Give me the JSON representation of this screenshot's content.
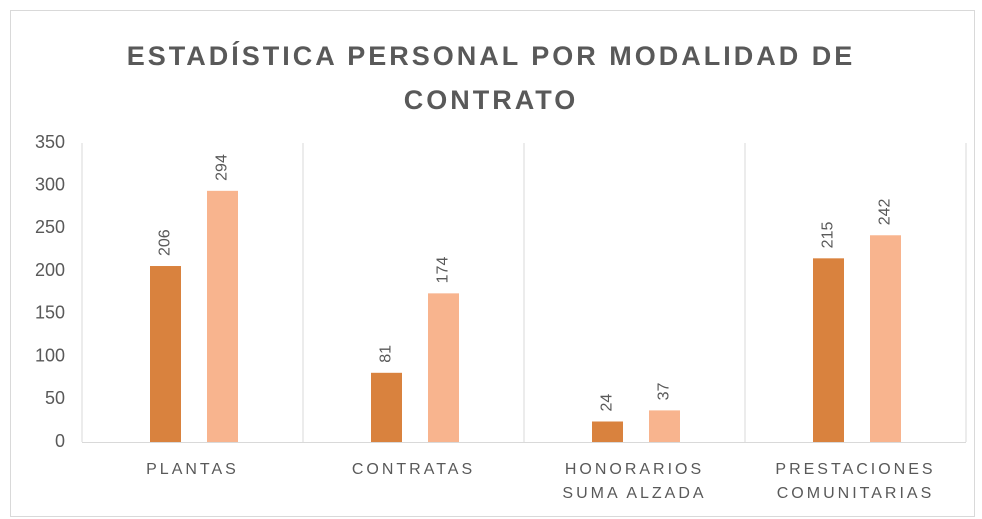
{
  "chart_data": {
    "type": "bar",
    "title": "ESTADÍSTICA PERSONAL POR MODALIDAD DE CONTRATO",
    "categories": [
      "PLANTAS",
      "CONTRATAS",
      "HONORARIOS SUMA ALZADA",
      "PRESTACIONES COMUNITARIAS"
    ],
    "series": [
      {
        "color": "#d9823e",
        "values": [
          206,
          81,
          24,
          215
        ]
      },
      {
        "color": "#f8b48e",
        "values": [
          294,
          174,
          37,
          242
        ]
      }
    ],
    "ylim": [
      0,
      350
    ],
    "yticks": [
      0,
      50,
      100,
      150,
      200,
      250,
      300,
      350
    ],
    "grid": true
  }
}
